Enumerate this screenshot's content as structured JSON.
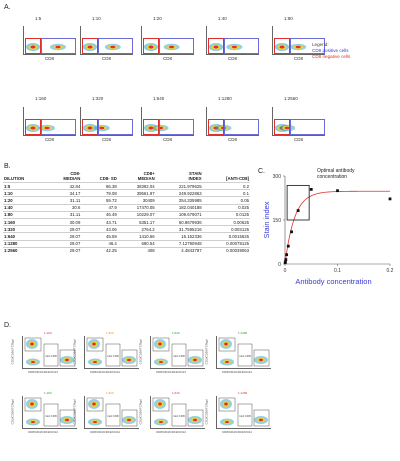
{
  "panel_a": {
    "letter": "A.",
    "dilutions": [
      "1:5",
      "1:10",
      "1:20",
      "1:40",
      "1:80",
      "1:160",
      "1:320",
      "1:640",
      "1:1280",
      "1:2560"
    ],
    "axis_label": "CD8",
    "legend": {
      "title": "Legend:",
      "positive": "CD8 positive cells",
      "negative": "CD8 negative cells",
      "positive_color": "#3b3bd6",
      "negative_color": "#e0302e"
    }
  },
  "panel_b": {
    "letter": "B.",
    "headers": [
      "DILUTION",
      "CD8-\nMEDIAN",
      "CD8- SD",
      "CD8+\nMEDIAN",
      "STAIN\nINDEX",
      "[ANTI-CD8]"
    ],
    "rows": [
      [
        "1:5",
        "42.84",
        "86.38",
        "38392.04",
        "221.979625",
        "0.2"
      ],
      [
        "1:10",
        "34.17",
        "79.08",
        "39561.97",
        "249.922863",
        "0.1"
      ],
      [
        "1:20",
        "31.11",
        "59.72",
        "30409",
        "254.335985",
        "0.05"
      ],
      [
        "1:40",
        "30.6",
        "47.9",
        "17470.05",
        "182.040188",
        "0.025"
      ],
      [
        "1:80",
        "31.11",
        "46.49",
        "10229.07",
        "109.679071",
        "0.0125"
      ],
      [
        "1:160",
        "30.09",
        "43.71",
        "5351.17",
        "60.8679936",
        "0.00625"
      ],
      [
        "1:320",
        "29.07",
        "43.06",
        "2764.2",
        "31.7595216",
        "0.003125"
      ],
      [
        "1:640",
        "29.07",
        "45.59",
        "1410.66",
        "15.152336",
        "0.0015625"
      ],
      [
        "1:1280",
        "29.07",
        "46.4",
        "690.54",
        "7.12790948",
        "0.00078125"
      ],
      [
        "1:2560",
        "29.07",
        "42.25",
        "408",
        "4.4843787",
        "0.00039063"
      ]
    ]
  },
  "panel_c": {
    "letter": "C.",
    "annotation": "Optimal antibody\nconcentration",
    "chart_data": {
      "type": "scatter",
      "xlabel": "Antibody concentration",
      "ylabel": "Stain index",
      "xlim": [
        0,
        0.2
      ],
      "ylim": [
        0,
        300
      ],
      "xticks": [
        "0",
        "0.1",
        "0.2"
      ],
      "yticks": [
        "0",
        "150",
        "300"
      ],
      "points": {
        "x": [
          0.2,
          0.1,
          0.05,
          0.025,
          0.0125,
          0.00625,
          0.003125,
          0.0015625,
          0.00078125,
          0.00039063
        ],
        "y": [
          221.98,
          249.92,
          254.34,
          182.04,
          109.68,
          60.87,
          31.76,
          15.15,
          7.13,
          4.48
        ]
      },
      "fit_color": "#e0302e",
      "point_color": "#111111",
      "xlabel_color": "#3b3bd6",
      "ylabel_color": "#3b3bd6"
    }
  },
  "panel_d": {
    "letter": "D.",
    "plots": [
      {
        "dil": "1:160",
        "color": "#e0302e"
      },
      {
        "dil": "1:320",
        "color": "#f08a00"
      },
      {
        "dil": "1:640",
        "color": "#2aa02a"
      },
      {
        "dil": "1:1280",
        "color": "#2aa02a"
      },
      {
        "dil": "1:160",
        "color": "#2aa02a"
      },
      {
        "dil": "1:320",
        "color": "#f08a00"
      },
      {
        "dil": "1:640",
        "color": "#e0302e"
      },
      {
        "dil": "1:1280",
        "color": "#e0302e"
      }
    ],
    "ylabel": "CD3/CD56/TCRgd",
    "xlabel": "CD8/CD4/CD19/CD14",
    "mid_label": "mid CD8"
  }
}
